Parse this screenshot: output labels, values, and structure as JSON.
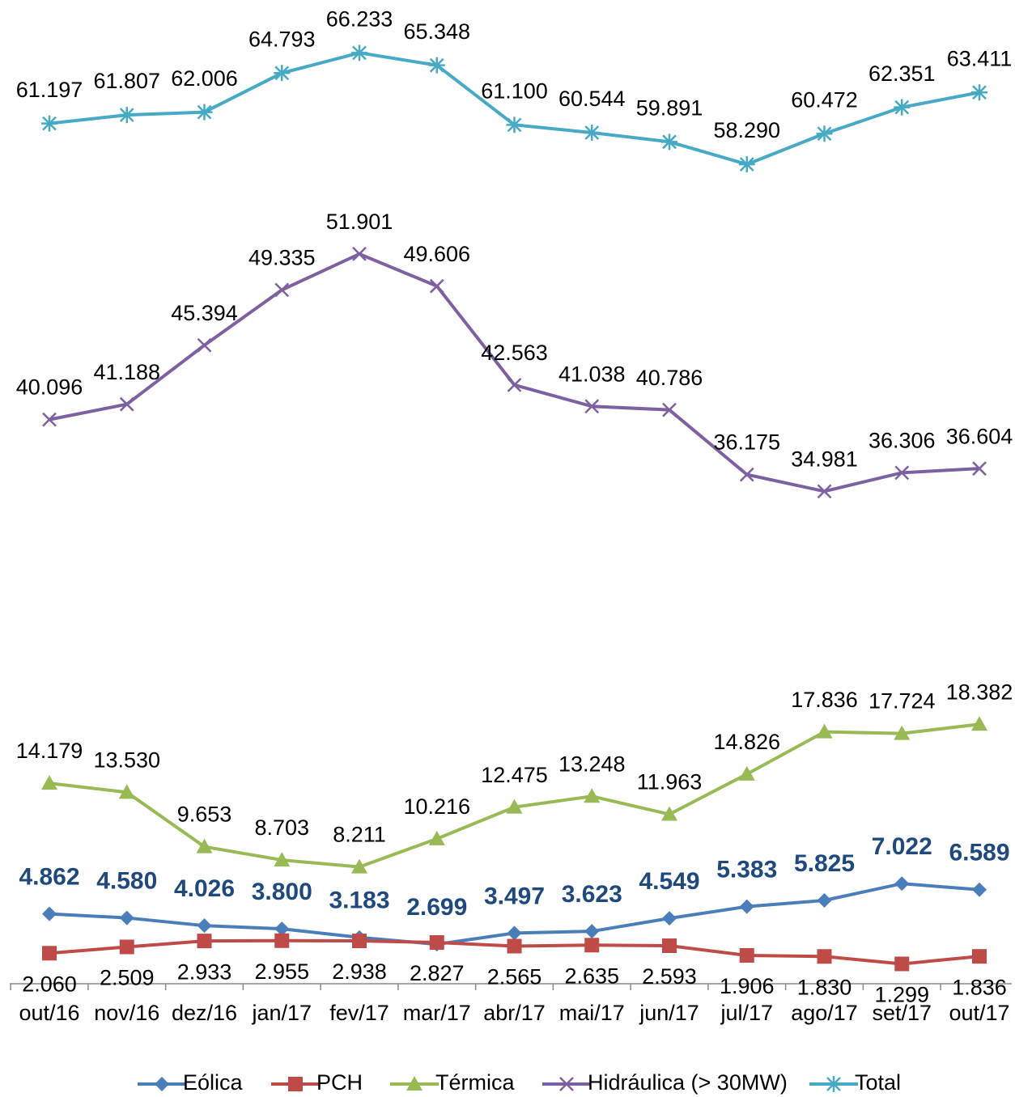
{
  "chart_data": {
    "type": "line",
    "categories": [
      "out/16",
      "nov/16",
      "dez/16",
      "jan/17",
      "fev/17",
      "mar/17",
      "abr/17",
      "mai/17",
      "jun/17",
      "jul/17",
      "ago/17",
      "set/17",
      "out/17"
    ],
    "ylim": [
      0,
      70
    ],
    "legend": "bottom",
    "series": [
      {
        "name": "Eólica",
        "color": "#4a7ebb",
        "marker": "diamond",
        "values": [
          4.862,
          4.58,
          4.026,
          3.8,
          3.183,
          2.699,
          3.497,
          3.623,
          4.549,
          5.383,
          5.825,
          7.022,
          6.589
        ],
        "value_labels": [
          "4.862",
          "4.580",
          "4.026",
          "3.800",
          "3.183",
          "2.699",
          "3.497",
          "3.623",
          "4.549",
          "5.383",
          "5.825",
          "7.022",
          "6.589"
        ]
      },
      {
        "name": "PCH",
        "color": "#be4b48",
        "marker": "square",
        "values": [
          2.06,
          2.509,
          2.933,
          2.955,
          2.938,
          2.827,
          2.565,
          2.635,
          2.593,
          1.906,
          1.83,
          1.299,
          1.836
        ],
        "value_labels": [
          "2.060",
          "2.509",
          "2.933",
          "2.955",
          "2.938",
          "2.827",
          "2.565",
          "2.635",
          "2.593",
          "1.906",
          "1.830",
          "1.299",
          "1.836"
        ]
      },
      {
        "name": "Térmica",
        "color": "#98b954",
        "marker": "triangle",
        "values": [
          14.179,
          13.53,
          9.653,
          8.703,
          8.211,
          10.216,
          12.475,
          13.248,
          11.963,
          14.826,
          17.836,
          17.724,
          18.382
        ],
        "value_labels": [
          "14.179",
          "13.530",
          "9.653",
          "8.703",
          "8.211",
          "10.216",
          "12.475",
          "13.248",
          "11.963",
          "14.826",
          "17.836",
          "17.724",
          "18.382"
        ]
      },
      {
        "name": "Hidráulica (> 30MW)",
        "color": "#7d60a0",
        "marker": "x",
        "values": [
          40.096,
          41.188,
          45.394,
          49.335,
          51.901,
          49.606,
          42.563,
          41.038,
          40.786,
          36.175,
          34.981,
          36.306,
          36.604
        ],
        "value_labels": [
          "40.096",
          "41.188",
          "45.394",
          "49.335",
          "51.901",
          "49.606",
          "42.563",
          "41.038",
          "40.786",
          "36.175",
          "34.981",
          "36.306",
          "36.604"
        ]
      },
      {
        "name": "Total",
        "color": "#46aac5",
        "marker": "star",
        "values": [
          61.197,
          61.807,
          62.006,
          64.793,
          66.233,
          65.348,
          61.1,
          60.544,
          59.891,
          58.29,
          60.472,
          62.351,
          63.411
        ],
        "value_labels": [
          "61.197",
          "61.807",
          "62.006",
          "64.793",
          "66.233",
          "65.348",
          "61.100",
          "60.544",
          "59.891",
          "58.290",
          "60.472",
          "62.351",
          "63.411"
        ]
      }
    ]
  }
}
